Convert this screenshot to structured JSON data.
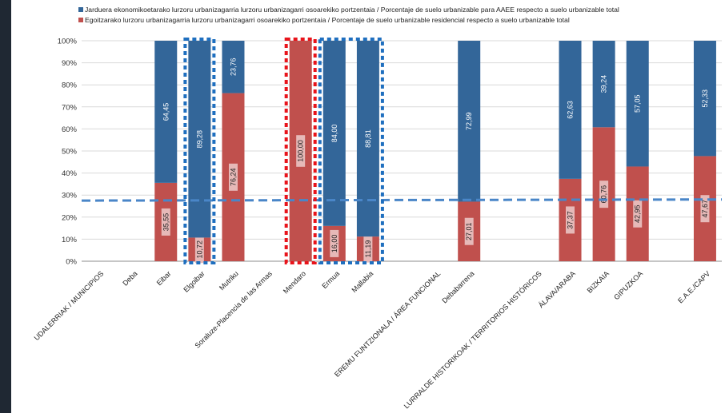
{
  "chart_data": {
    "type": "bar",
    "stacked": true,
    "categories": [
      "UDALERRIAK / MUNICIPIOS",
      "Deba",
      "Eibar",
      "Elgoibar",
      "Mutriku",
      "Soraluze-Placencia de las Armas",
      "Mendaro",
      "Ermua",
      "Mallabia",
      "",
      "EREMU FUNTZIONALA / ÁREA FUNCIONAL",
      "Debabarrena",
      "",
      "LURRALDE HISTORIKOAK / TERRITORIOS HISTÓRICOS",
      "ÁLAVA/ARABA",
      "BIZKAIA",
      "GIPUZKOA",
      "",
      "E.A.E./CAPV"
    ],
    "series": [
      {
        "name": "Egoitzarako lurzoru urbanizagarria lurzoru urbanizagarri osoarekiko portzentaia / Porcentaje de suelo urbanizable residencial respecto a suelo urbanizable total",
        "color": "#c0504d",
        "values": [
          null,
          null,
          35.55,
          10.72,
          76.24,
          null,
          100.0,
          16.0,
          11.19,
          null,
          null,
          27.01,
          null,
          null,
          37.37,
          60.76,
          42.95,
          null,
          47.67
        ],
        "labels": [
          "",
          "",
          "35,55",
          "10,72",
          "76,24",
          "",
          "100,00",
          "16,00",
          "11,19",
          "",
          "",
          "27,01",
          "",
          "",
          "37,37",
          "60,76",
          "42,95",
          "",
          "47,67"
        ]
      },
      {
        "name": "Jarduera ekonomikoetarako lurzoru urbanizagarria lurzoru urbanizagarri osoarekiko portzentaia / Porcentaje de suelo urbanizable para AAEE respecto a suelo urbanizable total",
        "color": "#336699",
        "values": [
          null,
          null,
          64.45,
          89.28,
          23.76,
          null,
          0,
          84.0,
          88.81,
          null,
          null,
          72.99,
          null,
          null,
          62.63,
          39.24,
          57.05,
          null,
          52.33
        ],
        "labels": [
          "",
          "",
          "64,45",
          "89,28",
          "23,76",
          "",
          "",
          "84,00",
          "88,81",
          "",
          "",
          "72,99",
          "",
          "",
          "62,63",
          "39,24",
          "57,05",
          "",
          "52,33"
        ]
      }
    ],
    "ylim": [
      0,
      100
    ],
    "yticks": [
      "0%",
      "10%",
      "20%",
      "30%",
      "40%",
      "50%",
      "60%",
      "70%",
      "80%",
      "90%",
      "100%"
    ],
    "reference_line": {
      "value": 27.5,
      "style": "dashed",
      "color": "#4a86c8"
    },
    "highlight_boxes": [
      {
        "category": "Elgoibar",
        "color": "#1f6fbf"
      },
      {
        "category": "Mendaro",
        "color": "#e8141b"
      },
      {
        "categories": [
          "Ermua",
          "Mallabia"
        ],
        "color": "#1f6fbf"
      }
    ],
    "legend_position": "top",
    "grid": true,
    "title": "",
    "xlabel": "",
    "ylabel": ""
  }
}
